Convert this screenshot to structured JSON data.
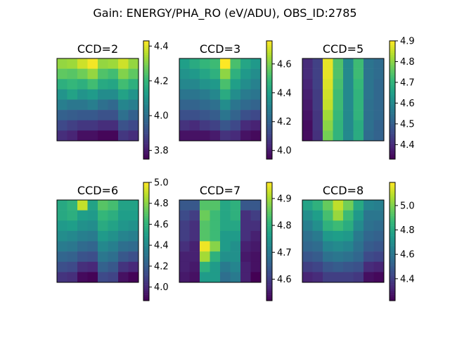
{
  "title": "Gain: ENERGY/PHA_RO (eV/ADU), OBS_ID:2785",
  "colormap": "viridis",
  "chart_data": [
    {
      "type": "heatmap",
      "title": "CCD=2",
      "vlim": [
        3.75,
        4.43
      ],
      "colorbar_ticks": [
        3.8,
        4.0,
        4.2,
        4.4
      ],
      "values": [
        [
          4.32,
          4.33,
          4.38,
          4.42,
          4.32,
          4.33,
          4.38,
          4.32
        ],
        [
          4.26,
          4.25,
          4.28,
          4.32,
          4.24,
          4.22,
          4.3,
          4.26
        ],
        [
          4.18,
          4.2,
          4.18,
          4.22,
          4.16,
          4.15,
          4.22,
          4.18
        ],
        [
          4.1,
          4.14,
          4.1,
          4.12,
          4.08,
          4.08,
          4.14,
          4.1
        ],
        [
          4.04,
          4.02,
          4.02,
          4.04,
          4.0,
          3.98,
          4.06,
          4.04
        ],
        [
          3.96,
          3.95,
          3.94,
          3.94,
          3.92,
          3.92,
          4.0,
          3.96
        ],
        [
          3.9,
          3.88,
          3.86,
          3.86,
          3.84,
          3.84,
          3.92,
          3.9
        ],
        [
          3.84,
          3.82,
          3.78,
          3.78,
          3.76,
          3.76,
          3.86,
          3.84
        ]
      ]
    },
    {
      "type": "heatmap",
      "title": "CCD=3",
      "vlim": [
        3.94,
        4.76
      ],
      "colorbar_ticks": [
        4.0,
        4.2,
        4.4,
        4.6
      ],
      "values": [
        [
          4.4,
          4.44,
          4.48,
          4.5,
          4.76,
          4.52,
          4.42,
          4.38
        ],
        [
          4.36,
          4.38,
          4.42,
          4.46,
          4.62,
          4.46,
          4.38,
          4.34
        ],
        [
          4.32,
          4.32,
          4.36,
          4.38,
          4.52,
          4.4,
          4.34,
          4.3
        ],
        [
          4.26,
          4.26,
          4.28,
          4.32,
          4.44,
          4.34,
          4.28,
          4.26
        ],
        [
          4.2,
          4.2,
          4.22,
          4.24,
          4.34,
          4.26,
          4.22,
          4.2
        ],
        [
          4.14,
          4.14,
          4.16,
          4.18,
          4.26,
          4.2,
          4.14,
          4.12
        ],
        [
          4.06,
          4.04,
          4.08,
          4.1,
          4.16,
          4.12,
          4.04,
          4.02
        ],
        [
          3.98,
          3.98,
          3.98,
          4.0,
          4.06,
          4.04,
          3.98,
          3.96
        ]
      ]
    },
    {
      "type": "heatmap",
      "title": "CCD=5",
      "vlim": [
        4.33,
        4.9
      ],
      "colorbar_ticks": [
        4.4,
        4.5,
        4.6,
        4.7,
        4.8,
        4.9
      ],
      "values": [
        [
          4.4,
          4.44,
          4.88,
          4.74,
          4.6,
          4.72,
          4.55,
          4.53
        ],
        [
          4.4,
          4.44,
          4.88,
          4.74,
          4.6,
          4.72,
          4.55,
          4.53
        ],
        [
          4.39,
          4.44,
          4.87,
          4.73,
          4.6,
          4.71,
          4.55,
          4.52
        ],
        [
          4.38,
          4.43,
          4.86,
          4.72,
          4.6,
          4.7,
          4.55,
          4.52
        ],
        [
          4.37,
          4.43,
          4.85,
          4.72,
          4.6,
          4.7,
          4.54,
          4.52
        ],
        [
          4.36,
          4.42,
          4.82,
          4.71,
          4.6,
          4.7,
          4.54,
          4.52
        ],
        [
          4.35,
          4.42,
          4.8,
          4.7,
          4.6,
          4.68,
          4.54,
          4.51
        ],
        [
          4.35,
          4.41,
          4.78,
          4.7,
          4.6,
          4.68,
          4.53,
          4.51
        ]
      ]
    },
    {
      "type": "heatmap",
      "title": "CCD=6",
      "vlim": [
        3.87,
        5.0
      ],
      "colorbar_ticks": [
        4.0,
        4.2,
        4.4,
        4.6,
        4.8,
        5.0
      ],
      "values": [
        [
          4.55,
          4.6,
          4.9,
          4.52,
          4.7,
          4.66,
          4.52,
          4.52
        ],
        [
          4.55,
          4.58,
          4.5,
          4.48,
          4.62,
          4.58,
          4.5,
          4.5
        ],
        [
          4.48,
          4.5,
          4.44,
          4.42,
          4.56,
          4.52,
          4.46,
          4.44
        ],
        [
          4.42,
          4.4,
          4.36,
          4.34,
          4.48,
          4.44,
          4.38,
          4.36
        ],
        [
          4.34,
          4.32,
          4.26,
          4.24,
          4.4,
          4.36,
          4.28,
          4.26
        ],
        [
          4.24,
          4.22,
          4.16,
          4.14,
          4.32,
          4.28,
          4.18,
          4.14
        ],
        [
          4.14,
          4.12,
          4.02,
          4.0,
          4.22,
          4.18,
          4.04,
          4.0
        ],
        [
          4.04,
          4.02,
          3.9,
          3.88,
          4.12,
          4.1,
          3.92,
          3.88
        ]
      ]
    },
    {
      "type": "heatmap",
      "title": "CCD=7",
      "vlim": [
        4.52,
        4.96
      ],
      "colorbar_ticks": [
        4.6,
        4.7,
        4.8,
        4.9
      ],
      "values": [
        [
          4.64,
          4.64,
          4.84,
          4.84,
          4.78,
          4.8,
          4.64,
          4.64
        ],
        [
          4.62,
          4.6,
          4.86,
          4.82,
          4.78,
          4.8,
          4.58,
          4.6
        ],
        [
          4.6,
          4.58,
          4.84,
          4.82,
          4.78,
          4.78,
          4.58,
          4.58
        ],
        [
          4.6,
          4.58,
          4.84,
          4.82,
          4.76,
          4.76,
          4.58,
          4.56
        ],
        [
          4.58,
          4.56,
          4.95,
          4.88,
          4.76,
          4.74,
          4.56,
          4.55
        ],
        [
          4.56,
          4.56,
          4.9,
          4.8,
          4.74,
          4.74,
          4.55,
          4.54
        ],
        [
          4.56,
          4.55,
          4.8,
          4.76,
          4.7,
          4.72,
          4.56,
          4.54
        ],
        [
          4.55,
          4.54,
          4.76,
          4.76,
          4.68,
          4.7,
          4.56,
          4.52
        ]
      ]
    },
    {
      "type": "heatmap",
      "title": "CCD=8",
      "vlim": [
        4.22,
        5.19
      ],
      "colorbar_ticks": [
        4.4,
        4.6,
        4.8,
        5.0
      ],
      "values": [
        [
          4.78,
          4.84,
          4.96,
          5.1,
          4.98,
          4.8,
          4.66,
          4.64
        ],
        [
          4.7,
          4.76,
          4.9,
          5.04,
          4.88,
          4.74,
          4.6,
          4.6
        ],
        [
          4.64,
          4.7,
          4.84,
          4.88,
          4.82,
          4.68,
          4.58,
          4.56
        ],
        [
          4.58,
          4.62,
          4.74,
          4.76,
          4.74,
          4.62,
          4.54,
          4.52
        ],
        [
          4.54,
          4.56,
          4.66,
          4.68,
          4.66,
          4.58,
          4.5,
          4.48
        ],
        [
          4.48,
          4.5,
          4.58,
          4.6,
          4.58,
          4.54,
          4.44,
          4.42
        ],
        [
          4.4,
          4.42,
          4.48,
          4.5,
          4.48,
          4.46,
          4.34,
          4.32
        ],
        [
          4.32,
          4.34,
          4.4,
          4.4,
          4.4,
          4.38,
          4.26,
          4.24
        ]
      ]
    }
  ]
}
